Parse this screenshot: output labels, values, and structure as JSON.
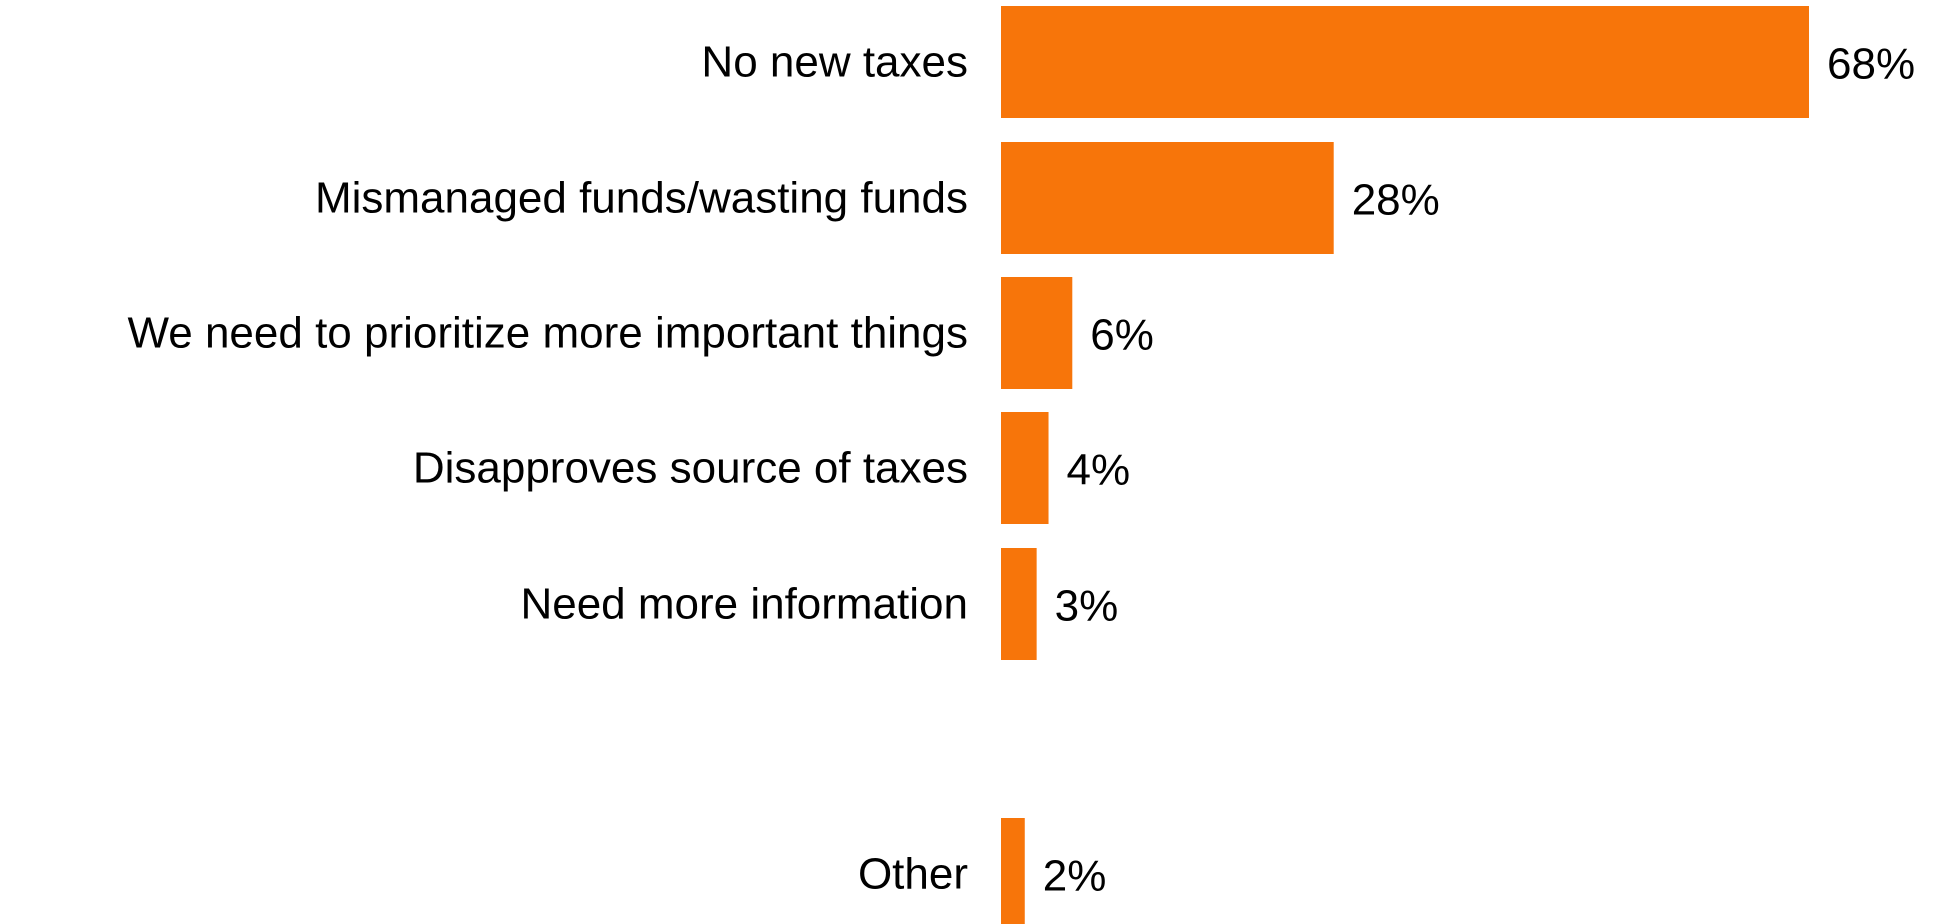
{
  "chart_data": {
    "type": "bar",
    "orientation": "horizontal",
    "title": "",
    "xlabel": "",
    "ylabel": "",
    "unit": "%",
    "xlim": [
      0,
      68
    ],
    "grid": false,
    "legend": "none",
    "color": "#F7750A",
    "categories": [
      "No new taxes",
      "Mismanaged funds/wasting funds",
      "We need to prioritize more important things",
      "Disapproves source of taxes",
      "Need more information",
      "Other"
    ],
    "values": [
      68,
      28,
      6,
      4,
      3,
      2
    ],
    "value_labels": [
      "68%",
      "28%",
      "6%",
      "4%",
      "3%",
      "2%"
    ]
  }
}
